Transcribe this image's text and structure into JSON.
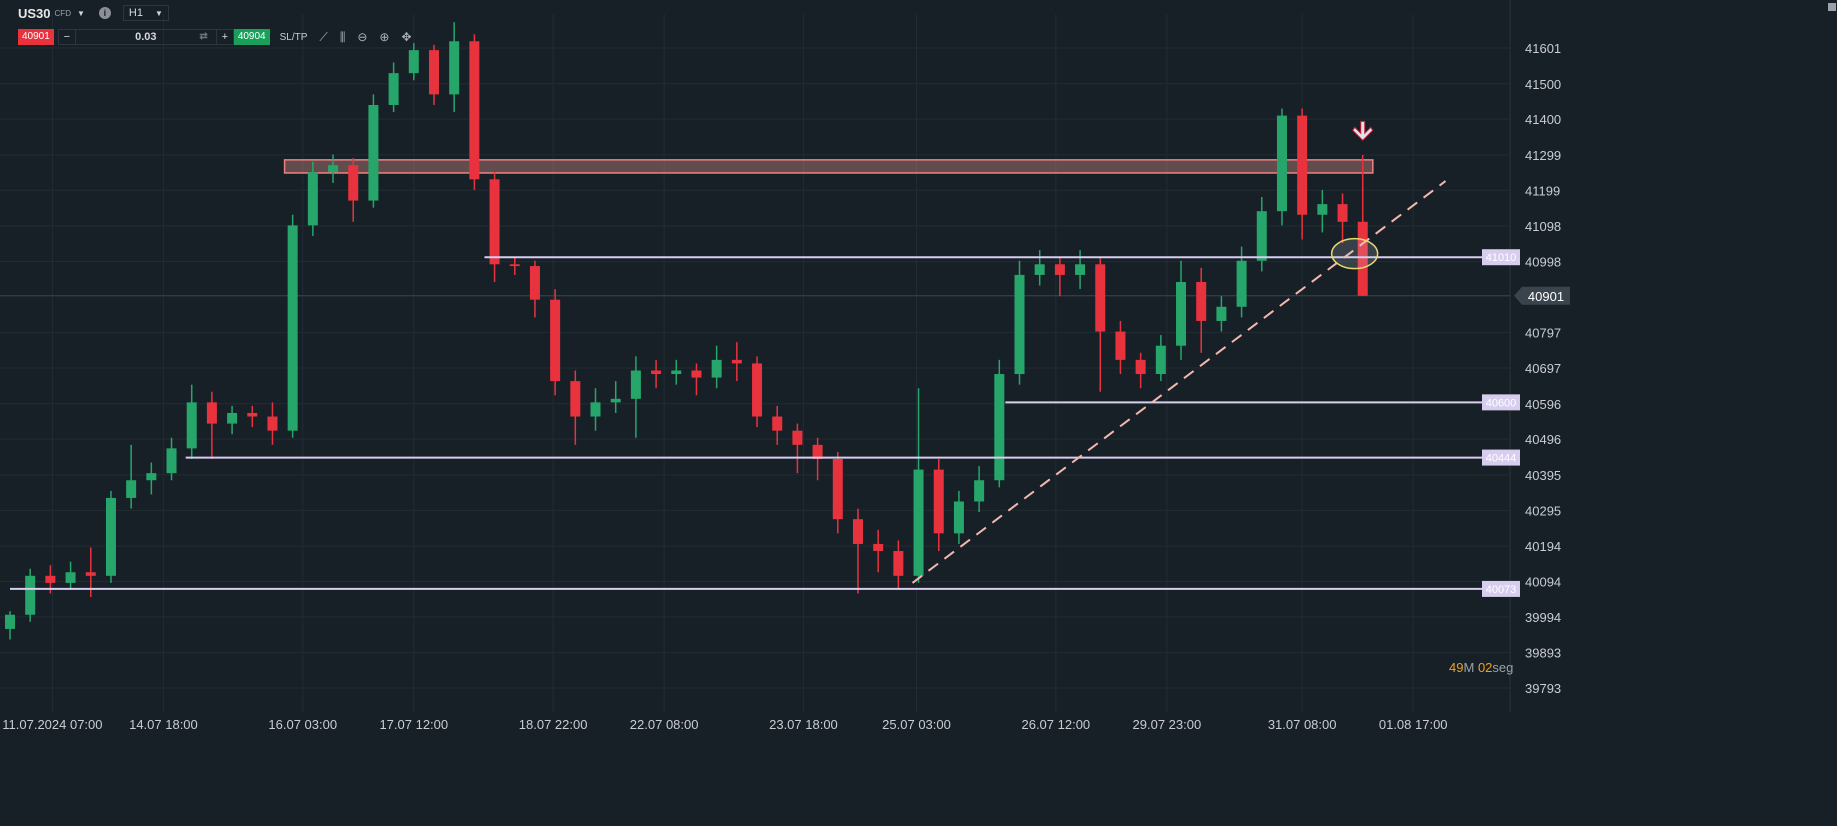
{
  "toolbar": {
    "symbol": "US30",
    "symbol_type": "CFD",
    "timeframe": "H1",
    "sell_price": "40901",
    "buy_price": "40904",
    "lot_minus": "−",
    "lot_value": "0.03",
    "lot_plus": "+",
    "sltp_label": "SL/TP",
    "icons": [
      "caret-down-icon",
      "info-icon",
      "swap-icon",
      "line-chart-icon",
      "candlestick-icon",
      "zoom-out-icon",
      "zoom-in-icon",
      "move-icon",
      "minimize-icon"
    ]
  },
  "timer": {
    "minutes": "49",
    "minutes_unit": "M",
    "seconds": "02",
    "seconds_unit": "seg"
  },
  "colors": {
    "background": "#182027",
    "grid": "#222b33",
    "up": "#26a66b",
    "down": "#e8333f",
    "level": "#d6cdef",
    "zone": "#f08080",
    "trendline": "#f4b8b0",
    "ellipse": "#e8d870",
    "timer_number": "#f0a020"
  },
  "chart_data": {
    "type": "candlestick",
    "symbol": "US30",
    "timeframe": "H1",
    "current_price": 40901,
    "ylim": [
      39760,
      41700
    ],
    "y_ticks": [
      41601,
      41500,
      41400,
      41299,
      41199,
      41098,
      40998,
      40901,
      40797,
      40697,
      40596,
      40496,
      40395,
      40295,
      40194,
      40094,
      39994,
      39893,
      39793
    ],
    "x_ticks": [
      {
        "label": "11.07.2024 07:00",
        "index": 2.1
      },
      {
        "label": "14.07 18:00",
        "index": 7.6
      },
      {
        "label": "16.07 03:00",
        "index": 14.5
      },
      {
        "label": "17.07 12:00",
        "index": 20
      },
      {
        "label": "18.07 22:00",
        "index": 26.9
      },
      {
        "label": "22.07 08:00",
        "index": 32.4
      },
      {
        "label": "23.07 18:00",
        "index": 39.3
      },
      {
        "label": "25.07 03:00",
        "index": 44.9
      },
      {
        "label": "26.07 12:00",
        "index": 51.8
      },
      {
        "label": "29.07 23:00",
        "index": 57.3
      },
      {
        "label": "31.07 08:00",
        "index": 64
      },
      {
        "label": "01.08 17:00",
        "index": 69.5
      }
    ],
    "grid": true,
    "ohlc": [
      [
        39960,
        40010,
        39930,
        40000
      ],
      [
        40000,
        40130,
        39980,
        40110
      ],
      [
        40110,
        40140,
        40060,
        40090
      ],
      [
        40090,
        40150,
        40070,
        40120
      ],
      [
        40120,
        40190,
        40050,
        40110
      ],
      [
        40110,
        40350,
        40090,
        40330
      ],
      [
        40330,
        40480,
        40300,
        40380
      ],
      [
        40380,
        40430,
        40340,
        40400
      ],
      [
        40400,
        40500,
        40380,
        40470
      ],
      [
        40470,
        40650,
        40440,
        40600
      ],
      [
        40600,
        40630,
        40440,
        40540
      ],
      [
        40540,
        40590,
        40510,
        40570
      ],
      [
        40570,
        40590,
        40530,
        40560
      ],
      [
        40560,
        40600,
        40480,
        40520
      ],
      [
        40520,
        41130,
        40500,
        41100
      ],
      [
        41100,
        41280,
        41070,
        41250
      ],
      [
        41250,
        41300,
        41220,
        41270
      ],
      [
        41270,
        41290,
        41110,
        41170
      ],
      [
        41170,
        41470,
        41150,
        41440
      ],
      [
        41440,
        41560,
        41420,
        41530
      ],
      [
        41530,
        41615,
        41510,
        41595
      ],
      [
        41595,
        41610,
        41440,
        41470
      ],
      [
        41470,
        41674,
        41420,
        41620
      ],
      [
        41620,
        41640,
        41200,
        41230
      ],
      [
        41230,
        41250,
        40940,
        40990
      ],
      [
        40990,
        41010,
        40960,
        40985
      ],
      [
        40985,
        41000,
        40840,
        40890
      ],
      [
        40890,
        40920,
        40620,
        40660
      ],
      [
        40660,
        40690,
        40480,
        40560
      ],
      [
        40560,
        40640,
        40520,
        40600
      ],
      [
        40600,
        40660,
        40570,
        40610
      ],
      [
        40610,
        40730,
        40500,
        40690
      ],
      [
        40690,
        40720,
        40640,
        40680
      ],
      [
        40680,
        40720,
        40650,
        40690
      ],
      [
        40690,
        40710,
        40620,
        40670
      ],
      [
        40670,
        40760,
        40640,
        40720
      ],
      [
        40720,
        40770,
        40660,
        40710
      ],
      [
        40710,
        40730,
        40530,
        40560
      ],
      [
        40560,
        40590,
        40480,
        40520
      ],
      [
        40520,
        40540,
        40400,
        40480
      ],
      [
        40480,
        40500,
        40380,
        40440
      ],
      [
        40440,
        40460,
        40230,
        40270
      ],
      [
        40270,
        40300,
        40060,
        40200
      ],
      [
        40200,
        40240,
        40120,
        40180
      ],
      [
        40180,
        40210,
        40070,
        40110
      ],
      [
        40110,
        40640,
        40090,
        40410
      ],
      [
        40410,
        40440,
        40180,
        40230
      ],
      [
        40230,
        40350,
        40200,
        40320
      ],
      [
        40320,
        40420,
        40290,
        40380
      ],
      [
        40380,
        40720,
        40360,
        40680
      ],
      [
        40680,
        41000,
        40650,
        40960
      ],
      [
        40960,
        41030,
        40930,
        40990
      ],
      [
        40990,
        41010,
        40900,
        40960
      ],
      [
        40960,
        41030,
        40920,
        40990
      ],
      [
        40990,
        41010,
        40630,
        40800
      ],
      [
        40800,
        40830,
        40680,
        40720
      ],
      [
        40720,
        40740,
        40640,
        40680
      ],
      [
        40680,
        40790,
        40660,
        40760
      ],
      [
        40760,
        41000,
        40720,
        40940
      ],
      [
        40940,
        40980,
        40740,
        40830
      ],
      [
        40830,
        40900,
        40800,
        40870
      ],
      [
        40870,
        41040,
        40840,
        41000
      ],
      [
        41000,
        41180,
        40970,
        41140
      ],
      [
        41140,
        41430,
        41100,
        41410
      ],
      [
        41410,
        41430,
        41060,
        41130
      ],
      [
        41130,
        41200,
        41080,
        41160
      ],
      [
        41160,
        41190,
        41050,
        41110
      ],
      [
        41110,
        41299,
        40900,
        40901
      ]
    ],
    "levels": [
      {
        "price": 41010,
        "label": "41010",
        "from_index": 23.5
      },
      {
        "price": 40600,
        "label": "40600",
        "from_index": 49.3
      },
      {
        "price": 40444,
        "label": "40444",
        "from_index": 8.7
      },
      {
        "price": 40073,
        "label": "40073",
        "from_index": 0
      }
    ],
    "zone": {
      "price_top": 41285,
      "price_bottom": 41248,
      "from_index": 13.6,
      "to_index": 67.5
    },
    "trendline": {
      "start": {
        "index": 44.7,
        "price": 40090
      },
      "end": {
        "index": 71.1,
        "price": 41225
      }
    },
    "ellipse": {
      "index": 66.6,
      "price": 41020
    },
    "arrow": {
      "direction": "down",
      "index": 67,
      "price": 41360
    }
  }
}
